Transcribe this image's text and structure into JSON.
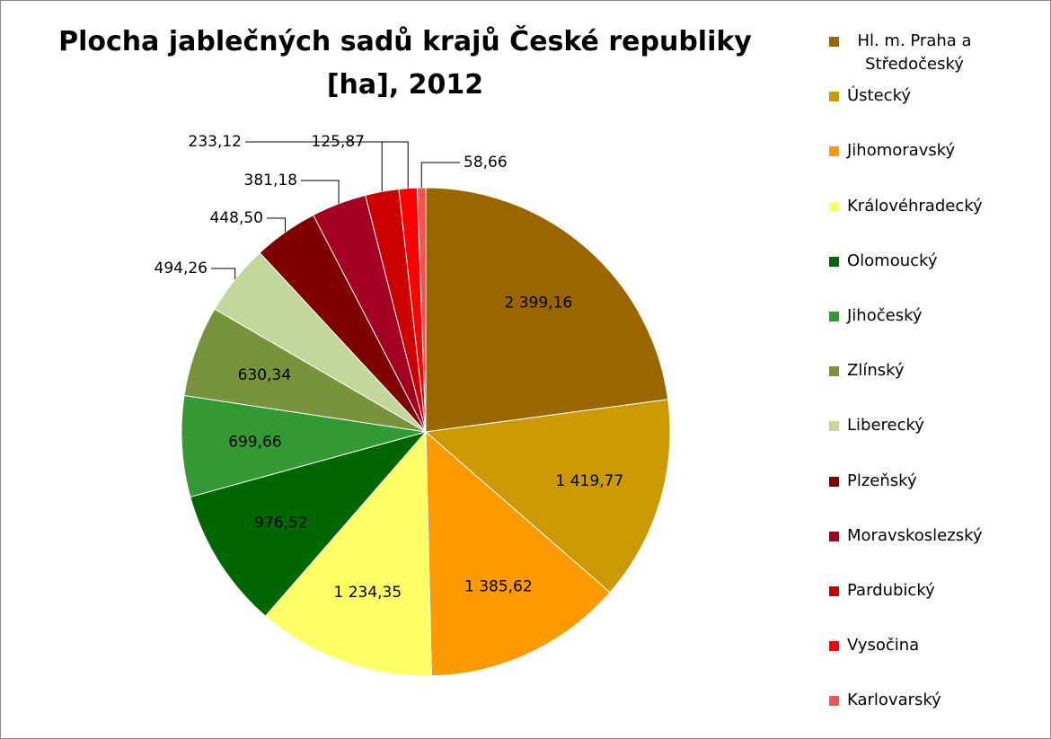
{
  "chart_data": {
    "type": "pie",
    "title": "Plocha jablečných sadů krajů České republiky [ha], 2012",
    "categories": [
      "Hl. m. Praha a Středočeský",
      "Ústecký",
      "Jihomoravský",
      "Královéhradecký",
      "Olomoucký",
      "Jihočeský",
      "Zlínský",
      "Liberecký",
      "Plzeňský",
      "Moravskoslezský",
      "Pardubický",
      "Vysočina",
      "Karlovarský"
    ],
    "values": [
      2399.16,
      1419.77,
      1385.62,
      1234.35,
      976.52,
      699.66,
      630.34,
      494.26,
      448.5,
      381.18,
      233.12,
      125.87,
      58.66
    ],
    "value_labels": [
      "2 399,16",
      "1 419,77",
      "1 385,62",
      "1 234,35",
      "976,52",
      "699,66",
      "630,34",
      "494,26",
      "448,50",
      "381,18",
      "233,12",
      "125,87",
      "58,66"
    ],
    "colors": [
      "#996600",
      "#CC9900",
      "#FF9900",
      "#FFFF66",
      "#006600",
      "#339933",
      "#77933C",
      "#C4D79B",
      "#800000",
      "#A50021",
      "#CC0000",
      "#FF0000",
      "#FF5050"
    ],
    "legend": "right"
  }
}
